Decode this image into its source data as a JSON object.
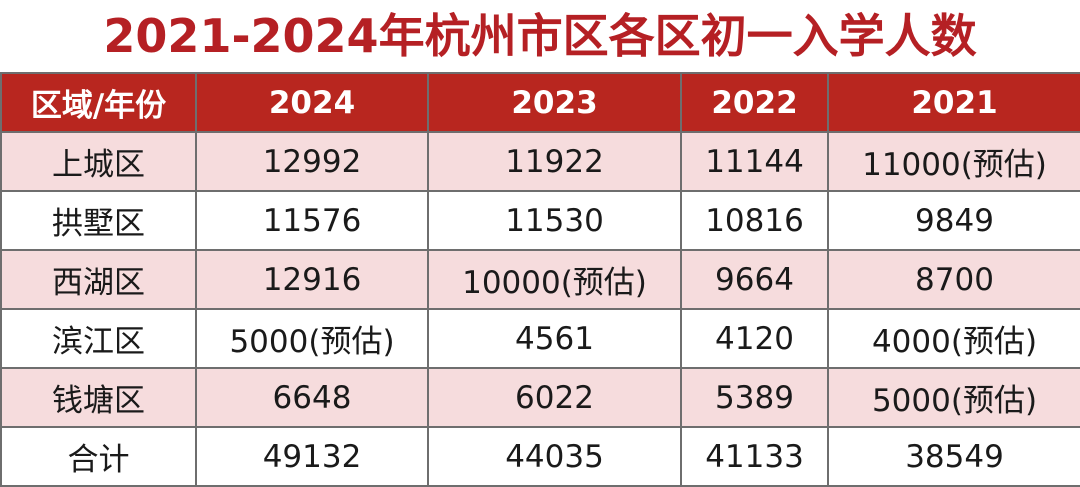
{
  "chart_data": {
    "type": "table",
    "title": "2021-2024年杭州市区各区初一入学人数",
    "columns": [
      "区域/年份",
      "2024",
      "2023",
      "2022",
      "2021"
    ],
    "rows": [
      [
        "上城区",
        "12992",
        "11922",
        "11144",
        "11000(预估)"
      ],
      [
        "拱墅区",
        "11576",
        "11530",
        "10816",
        "9849"
      ],
      [
        "西湖区",
        "12916",
        "10000(预估)",
        "9664",
        "8700"
      ],
      [
        "滨江区",
        "5000(预估)",
        "4561",
        "4120",
        "4000(预估)"
      ],
      [
        "钱塘区",
        "6648",
        "6022",
        "5389",
        "5000(预估)"
      ],
      [
        "合计",
        "49132",
        "44035",
        "41133",
        "38549"
      ]
    ]
  },
  "colors": {
    "title": "#b52024",
    "header_bg": "#b8261f",
    "header_text": "#ffffff",
    "shaded_row": "#f6dcdd",
    "border": "#6e6e6e"
  }
}
